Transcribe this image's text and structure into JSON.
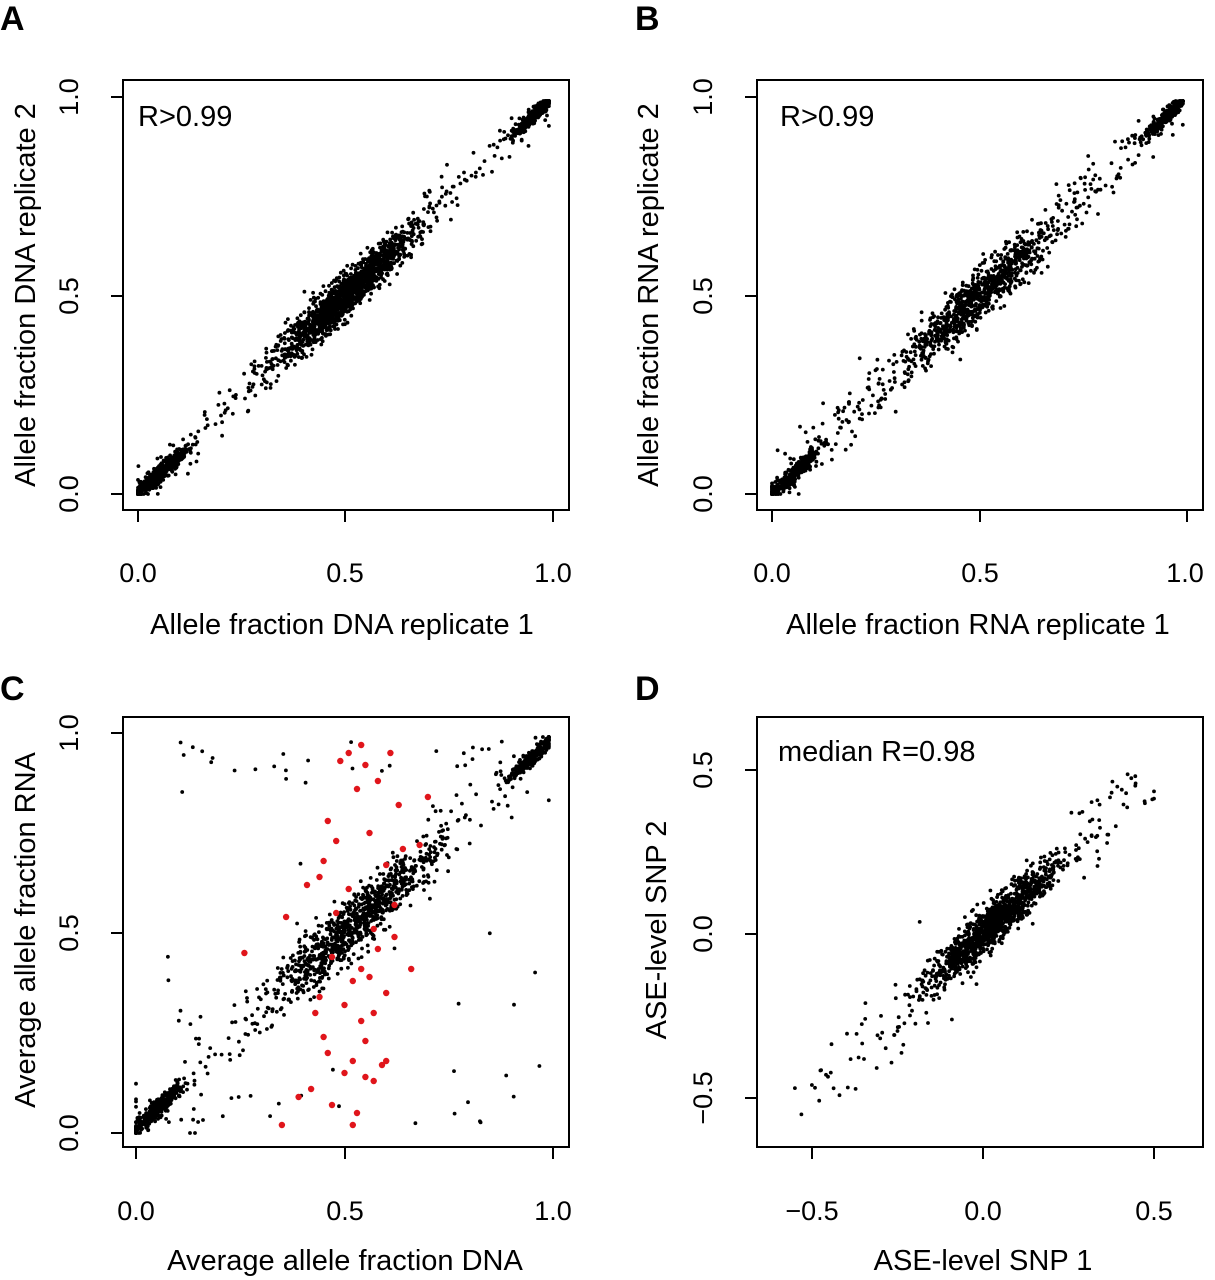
{
  "chart_data": [
    {
      "id": "A",
      "panel_label": "A",
      "type": "scatter",
      "xlabel": "Allele fraction DNA replicate 1",
      "ylabel": "Allele fraction DNA replicate 2",
      "xlim": [
        0.0,
        1.0
      ],
      "ylim": [
        0.0,
        1.0
      ],
      "xticks": [
        "0.0",
        "0.5",
        "1.0"
      ],
      "yticks": [
        "0.0",
        "0.5",
        "1.0"
      ],
      "annotation": "R>0.99",
      "point_color": "#000000",
      "series": [
        {
          "clusters": [
            {
              "cx": 0.05,
              "cy": 0.05,
              "sd": 0.025,
              "n": 500
            },
            {
              "cx": 0.5,
              "cy": 0.5,
              "sd": 0.06,
              "n": 1400
            },
            {
              "cx": 0.96,
              "cy": 0.96,
              "sd": 0.02,
              "n": 400
            }
          ],
          "diagonal_scatter": {
            "n": 220,
            "noise": 0.02
          }
        }
      ]
    },
    {
      "id": "B",
      "panel_label": "B",
      "type": "scatter",
      "xlabel": "Allele fraction RNA replicate 1",
      "ylabel": "Allele fraction RNA replicate 2",
      "xlim": [
        0.0,
        1.0
      ],
      "ylim": [
        0.0,
        1.0
      ],
      "xticks": [
        "0.0",
        "0.5",
        "1.0"
      ],
      "yticks": [
        "0.0",
        "0.5",
        "1.0"
      ],
      "annotation": "R>0.99",
      "point_color": "#000000",
      "series": [
        {
          "clusters": [
            {
              "cx": 0.05,
              "cy": 0.05,
              "sd": 0.025,
              "n": 350
            },
            {
              "cx": 0.5,
              "cy": 0.5,
              "sd": 0.07,
              "n": 800
            },
            {
              "cx": 0.95,
              "cy": 0.95,
              "sd": 0.02,
              "n": 300
            }
          ],
          "diagonal_scatter": {
            "n": 260,
            "noise": 0.03
          }
        }
      ]
    },
    {
      "id": "C",
      "panel_label": "C",
      "type": "scatter",
      "xlabel": "Average allele fraction DNA",
      "ylabel": "Average allele fraction RNA",
      "xlim": [
        0.0,
        1.0
      ],
      "ylim": [
        0.0,
        1.0
      ],
      "xticks": [
        "0.0",
        "0.5",
        "1.0"
      ],
      "yticks": [
        "0.0",
        "0.5",
        "1.0"
      ],
      "annotation": "",
      "point_color": "#000000",
      "highlight_color": "#e0151b",
      "series": [
        {
          "clusters": [
            {
              "cx": 0.05,
              "cy": 0.06,
              "sd": 0.025,
              "n": 350
            },
            {
              "cx": 0.52,
              "cy": 0.52,
              "sd": 0.08,
              "n": 900
            },
            {
              "cx": 0.95,
              "cy": 0.94,
              "sd": 0.02,
              "n": 300
            }
          ],
          "diagonal_scatter": {
            "n": 120,
            "noise": 0.05
          },
          "outliers": {
            "n": 70
          }
        },
        {
          "highlighted": [
            [
              0.26,
              0.45
            ],
            [
              0.36,
              0.54
            ],
            [
              0.35,
              0.02
            ],
            [
              0.39,
              0.09
            ],
            [
              0.41,
              0.62
            ],
            [
              0.42,
              0.11
            ],
            [
              0.43,
              0.3
            ],
            [
              0.44,
              0.34
            ],
            [
              0.45,
              0.68
            ],
            [
              0.46,
              0.2
            ],
            [
              0.46,
              0.78
            ],
            [
              0.47,
              0.44
            ],
            [
              0.47,
              0.07
            ],
            [
              0.48,
              0.73
            ],
            [
              0.49,
              0.93
            ],
            [
              0.5,
              0.32
            ],
            [
              0.5,
              0.15
            ],
            [
              0.51,
              0.95
            ],
            [
              0.51,
              0.61
            ],
            [
              0.52,
              0.18
            ],
            [
              0.52,
              0.38
            ],
            [
              0.53,
              0.86
            ],
            [
              0.53,
              0.05
            ],
            [
              0.54,
              0.97
            ],
            [
              0.54,
              0.28
            ],
            [
              0.54,
              0.41
            ],
            [
              0.55,
              0.14
            ],
            [
              0.55,
              0.23
            ],
            [
              0.56,
              0.75
            ],
            [
              0.56,
              0.39
            ],
            [
              0.57,
              0.51
            ],
            [
              0.57,
              0.13
            ],
            [
              0.58,
              0.88
            ],
            [
              0.58,
              0.46
            ],
            [
              0.59,
              0.17
            ],
            [
              0.6,
              0.67
            ],
            [
              0.6,
              0.35
            ],
            [
              0.61,
              0.95
            ],
            [
              0.62,
              0.57
            ],
            [
              0.63,
              0.82
            ],
            [
              0.64,
              0.71
            ],
            [
              0.66,
              0.41
            ],
            [
              0.68,
              0.72
            ],
            [
              0.7,
              0.84
            ],
            [
              0.52,
              0.02
            ],
            [
              0.45,
              0.24
            ],
            [
              0.48,
              0.55
            ],
            [
              0.62,
              0.49
            ],
            [
              0.55,
              0.92
            ],
            [
              0.6,
              0.18
            ],
            [
              0.44,
              0.64
            ],
            [
              0.57,
              0.3
            ]
          ]
        }
      ]
    },
    {
      "id": "D",
      "panel_label": "D",
      "type": "scatter",
      "xlabel": "ASE-level SNP 1",
      "ylabel": "ASE-level SNP 2",
      "xlim": [
        -0.55,
        0.55
      ],
      "ylim": [
        -0.6,
        0.6
      ],
      "xticks": [
        "−0.5",
        "0.0",
        "0.5"
      ],
      "yticks": [
        "−0.5",
        "0.0",
        "0.5"
      ],
      "annotation": "median R=0.98",
      "point_color": "#000000",
      "series": [
        {
          "clusters": [
            {
              "cx": 0.03,
              "cy": 0.03,
              "sd": 0.07,
              "n": 1100
            }
          ],
          "diagonal_scatter": {
            "n": 160,
            "noise": 0.04,
            "from": -0.5,
            "to": 0.45
          }
        }
      ]
    }
  ]
}
